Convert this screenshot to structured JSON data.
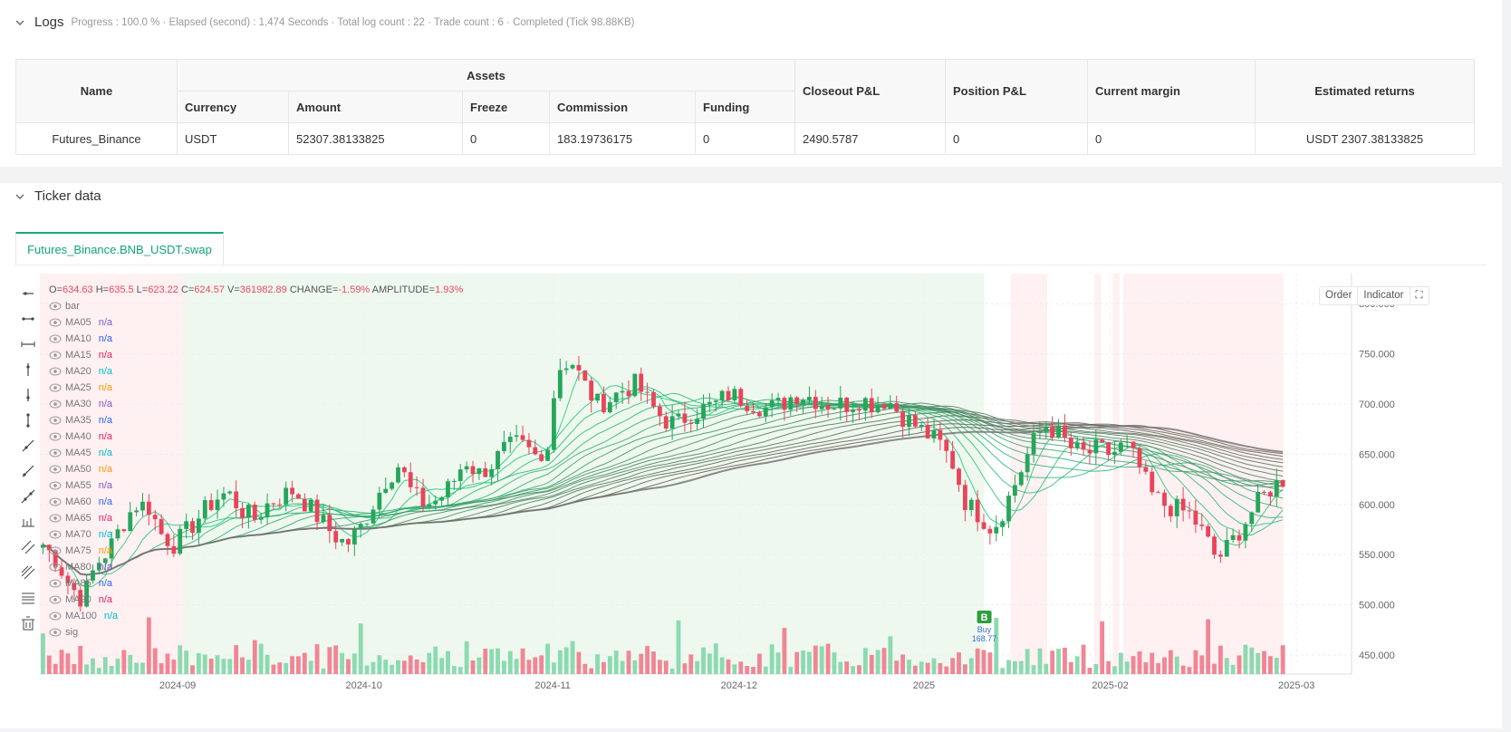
{
  "logs": {
    "title": "Logs",
    "status": "Progress : 100.0 % · Elapsed (second) : 1,474  Seconds · Total log count : 22 · Trade count : 6 · Completed (Tick 98.88KB)"
  },
  "assets_table": {
    "headers": {
      "name": "Name",
      "assets": "Assets",
      "currency": "Currency",
      "amount": "Amount",
      "freeze": "Freeze",
      "commission": "Commission",
      "funding": "Funding",
      "closeout": "Closeout P&L",
      "position": "Position P&L",
      "margin": "Current margin",
      "returns": "Estimated returns"
    },
    "row": {
      "name": "Futures_Binance",
      "currency": "USDT",
      "amount": "52307.38133825",
      "freeze": "0",
      "commission": "183.19736175",
      "funding": "0",
      "closeout": "2490.5787",
      "position": "0",
      "margin": "0",
      "returns": "USDT 2307.38133825"
    }
  },
  "ticker": {
    "title": "Ticker data",
    "tab": "Futures_Binance.BNB_USDT.swap",
    "buttons": {
      "order": "Order",
      "indicator": "Indicator"
    },
    "ohlc": {
      "o_label": "O=",
      "o": "634.63",
      "h_label": "H=",
      "h": "635.5",
      "l_label": "L=",
      "l": "623.22",
      "c_label": "C=",
      "c": "624.57",
      "v_label": "V=",
      "v": "361982.89",
      "change_label": "CHANGE=",
      "change": "-1.59%",
      "amp_label": "AMPLITUDE=",
      "amp": "1.93%"
    },
    "legend": [
      {
        "name": "bar",
        "value": "",
        "color": "#777"
      },
      {
        "name": "MA05",
        "value": "n/a",
        "color": "#7e57c2"
      },
      {
        "name": "MA10",
        "value": "n/a",
        "color": "#2962ff"
      },
      {
        "name": "MA15",
        "value": "n/a",
        "color": "#e91e63"
      },
      {
        "name": "MA20",
        "value": "n/a",
        "color": "#00bcd4"
      },
      {
        "name": "MA25",
        "value": "n/a",
        "color": "#ff9800"
      },
      {
        "name": "MA30",
        "value": "n/a",
        "color": "#7e57c2"
      },
      {
        "name": "MA35",
        "value": "n/a",
        "color": "#2962ff"
      },
      {
        "name": "MA40",
        "value": "n/a",
        "color": "#e91e63"
      },
      {
        "name": "MA45",
        "value": "n/a",
        "color": "#00bcd4"
      },
      {
        "name": "MA50",
        "value": "n/a",
        "color": "#ff9800"
      },
      {
        "name": "MA55",
        "value": "n/a",
        "color": "#7e57c2"
      },
      {
        "name": "MA60",
        "value": "n/a",
        "color": "#2962ff"
      },
      {
        "name": "MA65",
        "value": "n/a",
        "color": "#e91e63"
      },
      {
        "name": "MA70",
        "value": "n/a",
        "color": "#00bcd4"
      },
      {
        "name": "MA75",
        "value": "n/a",
        "color": "#ff9800"
      },
      {
        "name": "MA80",
        "value": "n/a",
        "color": "#7e57c2"
      },
      {
        "name": "MA85",
        "value": "n/a",
        "color": "#2962ff"
      },
      {
        "name": "MA90",
        "value": "n/a",
        "color": "#e91e63"
      },
      {
        "name": "MA100",
        "value": "n/a",
        "color": "#00bcd4"
      },
      {
        "name": "sig",
        "value": "",
        "color": "#777"
      }
    ],
    "y_ticks": [
      "800.000",
      "750.000",
      "700.000",
      "650.000",
      "600.000",
      "550.000",
      "500.000",
      "450.000"
    ],
    "x_ticks": [
      "2024-09",
      "2024-10",
      "2024-11",
      "2024-12",
      "2025",
      "2025-02",
      "2025-03"
    ],
    "marker": {
      "letter": "B",
      "label": "Buy",
      "price": "168.77"
    },
    "colors": {
      "up": "#26a69a",
      "down": "#ef5350",
      "bull_bg": "#e8f5e9",
      "bear_bg": "#ffebee"
    }
  },
  "chart_data": {
    "type": "candlestick",
    "ylim": [
      440,
      830
    ],
    "x_ticks": [
      "2024-09",
      "2024-10",
      "2024-11",
      "2024-12",
      "2025",
      "2025-02",
      "2025-03"
    ],
    "y_ticks": [
      800,
      750,
      700,
      650,
      600,
      550,
      500,
      450
    ],
    "last_bar": {
      "open": 634.63,
      "high": 635.5,
      "low": 623.22,
      "close": 624.57,
      "volume": 361982.89
    },
    "price_path": [
      560,
      545,
      520,
      505,
      540,
      555,
      580,
      600,
      598,
      570,
      560,
      575,
      590,
      605,
      612,
      595,
      585,
      600,
      608,
      614,
      600,
      585,
      570,
      560,
      575,
      600,
      625,
      640,
      610,
      600,
      605,
      620,
      645,
      630,
      640,
      655,
      660,
      650,
      640,
      735,
      745,
      720,
      700,
      705,
      715,
      720,
      700,
      685,
      680,
      690,
      695,
      700,
      710,
      705,
      700,
      695,
      700,
      710,
      708,
      702,
      700,
      700,
      705,
      700,
      705,
      690,
      680,
      670,
      660,
      640,
      600,
      590,
      575,
      600,
      630,
      660,
      680,
      670,
      655,
      650,
      655,
      650,
      660,
      640,
      610,
      600,
      595,
      590,
      570,
      545,
      560,
      580,
      600,
      615,
      625
    ]
  }
}
